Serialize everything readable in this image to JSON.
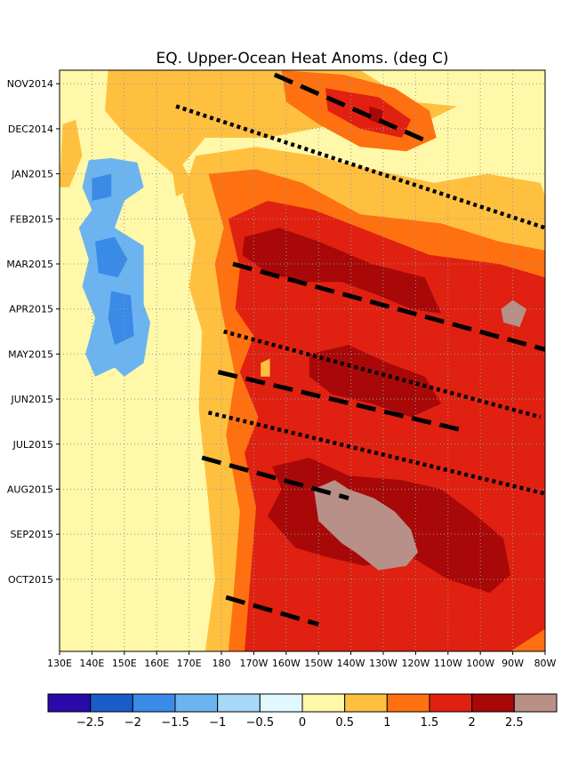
{
  "chart_data": {
    "type": "heatmap",
    "title": "EQ. Upper-Ocean Heat Anoms. (deg C)",
    "xlabel": "",
    "ylabel": "",
    "x_tick_labels": [
      "130E",
      "140E",
      "150E",
      "160E",
      "170E",
      "180",
      "170W",
      "160W",
      "150W",
      "140W",
      "130W",
      "120W",
      "110W",
      "100W",
      "90W",
      "80W"
    ],
    "y_tick_labels": [
      "NOV2014",
      "DEC2014",
      "JAN2015",
      "FEB2015",
      "MAR2015",
      "APR2015",
      "MAY2015",
      "JUN2015",
      "JUL2015",
      "AUG2015",
      "SEP2015",
      "OCT2015"
    ],
    "colorbar": {
      "labels": [
        "-2.5",
        "-2",
        "-1.5",
        "-1",
        "-0.5",
        "0",
        "0.5",
        "1",
        "1.5",
        "2",
        "2.5"
      ],
      "colors": [
        "#2a0aa8",
        "#1a5cc8",
        "#3a8ae8",
        "#6cb4f0",
        "#a8d8f8",
        "#e0f8ff",
        "#fff8a8",
        "#ffc040",
        "#ff7010",
        "#e02010",
        "#a80808",
        "#b89088"
      ]
    },
    "grid": true,
    "regions": [
      {
        "level": -1.5,
        "color": "#6cb4f0",
        "name": "blue-patch-west-1",
        "points": [
          [
            141,
            0.55
          ],
          [
            146,
            0.5
          ],
          [
            152,
            0.58
          ],
          [
            150,
            0.8
          ],
          [
            142,
            0.85
          ]
        ]
      },
      {
        "level": -1.5,
        "color": "#6cb4f0",
        "name": "blue-patch-west-2",
        "points": [
          [
            139,
            1.7
          ],
          [
            146,
            1.65
          ],
          [
            154,
            1.75
          ],
          [
            156,
            2.3
          ],
          [
            150,
            2.6
          ],
          [
            147,
            3.2
          ],
          [
            156,
            3.6
          ],
          [
            156,
            4.9
          ],
          [
            158,
            5.3
          ],
          [
            156,
            6.2
          ],
          [
            150,
            6.5
          ],
          [
            147,
            6.3
          ],
          [
            141,
            6.5
          ],
          [
            138,
            6.0
          ],
          [
            141,
            5.2
          ],
          [
            137,
            4.5
          ],
          [
            139,
            3.9
          ],
          [
            136,
            3.2
          ],
          [
            140,
            2.8
          ],
          [
            137,
            2.3
          ]
        ]
      },
      {
        "level": -1.0,
        "color": "#3a8ae8",
        "name": "blue-core-1",
        "points": [
          [
            140,
            2.1
          ],
          [
            146,
            2.0
          ],
          [
            146,
            2.5
          ],
          [
            140,
            2.6
          ]
        ]
      },
      {
        "level": -1.0,
        "color": "#3a8ae8",
        "name": "blue-core-2",
        "points": [
          [
            141,
            3.5
          ],
          [
            147,
            3.4
          ],
          [
            151,
            3.9
          ],
          [
            148,
            4.3
          ],
          [
            142,
            4.2
          ]
        ]
      },
      {
        "level": -1.0,
        "color": "#3a8ae8",
        "name": "blue-core-3",
        "points": [
          [
            146,
            4.6
          ],
          [
            152,
            4.7
          ],
          [
            153,
            5.6
          ],
          [
            147,
            5.8
          ],
          [
            145,
            5.2
          ]
        ]
      },
      {
        "level": 0.0,
        "color": "#fff8a8",
        "name": "warm-0",
        "points": [
          [
            135,
            -0.3
          ],
          [
            320,
            -0.3
          ],
          [
            320,
            12.6
          ],
          [
            163,
            12.6
          ],
          [
            165,
            10
          ],
          [
            167,
            7.5
          ],
          [
            165,
            6
          ],
          [
            167,
            4
          ],
          [
            165,
            3
          ],
          [
            160,
            2
          ],
          [
            150,
            1.2
          ],
          [
            133,
            1.1
          ],
          [
            131,
            0.4
          ],
          [
            135,
            0.1
          ]
        ]
      },
      {
        "level": 0.5,
        "color": "#ffc040",
        "name": "warm-05-north",
        "points": [
          [
            145,
            -0.3
          ],
          [
            240,
            -0.3
          ],
          [
            262,
            0.4
          ],
          [
            282,
            0.5
          ],
          [
            270,
            0.8
          ],
          [
            250,
            0.9
          ],
          [
            230,
            0.9
          ],
          [
            200,
            1.2
          ],
          [
            175,
            1.2
          ],
          [
            168,
            1.8
          ],
          [
            172,
            2.3
          ],
          [
            166,
            2.5
          ],
          [
            165,
            2.0
          ],
          [
            150,
            1.1
          ],
          [
            144,
            0.6
          ]
        ]
      },
      {
        "level": 0.5,
        "color": "#ffc040",
        "name": "warm-05-main",
        "points": [
          [
            172,
            1.6
          ],
          [
            195,
            1.4
          ],
          [
            220,
            1.6
          ],
          [
            245,
            1.9
          ],
          [
            272,
            2.2
          ],
          [
            295,
            2.0
          ],
          [
            318,
            2.2
          ],
          [
            320,
            2.5
          ],
          [
            320,
            12.6
          ],
          [
            175,
            12.6
          ],
          [
            178,
            11.0
          ],
          [
            176,
            9.3
          ],
          [
            173,
            7.2
          ],
          [
            174,
            5.5
          ],
          [
            170,
            4.5
          ],
          [
            172,
            3.5
          ],
          [
            168,
            2.5
          ]
        ]
      },
      {
        "level": 0.5,
        "color": "#ffc040",
        "name": "warm-05-west-strip",
        "points": [
          [
            131,
            0.9
          ],
          [
            135,
            0.8
          ],
          [
            137,
            1.6
          ],
          [
            133,
            2.3
          ],
          [
            130,
            2.3
          ]
        ]
      },
      {
        "level": 1.0,
        "color": "#ff7010",
        "name": "warm-1-north",
        "points": [
          [
            206,
            -0.3
          ],
          [
            233,
            -0.2
          ],
          [
            255,
            0.1
          ],
          [
            270,
            0.6
          ],
          [
            273,
            1.2
          ],
          [
            260,
            1.5
          ],
          [
            240,
            1.4
          ],
          [
            222,
            0.9
          ],
          [
            208,
            0.4
          ]
        ]
      },
      {
        "level": 1.0,
        "color": "#ff7010",
        "name": "warm-1-main",
        "points": [
          [
            176,
            2.0
          ],
          [
            195,
            1.9
          ],
          [
            215,
            2.2
          ],
          [
            240,
            2.9
          ],
          [
            275,
            3.1
          ],
          [
            300,
            3.5
          ],
          [
            320,
            3.7
          ],
          [
            320,
            12.6
          ],
          [
            183,
            12.6
          ],
          [
            185,
            11.5
          ],
          [
            188,
            9.5
          ],
          [
            182,
            7.8
          ],
          [
            186,
            6.5
          ],
          [
            180,
            5.0
          ],
          [
            178,
            4.0
          ],
          [
            181,
            3.2
          ]
        ]
      },
      {
        "level": 1.5,
        "color": "#e02010",
        "name": "warm-15-north",
        "points": [
          [
            225,
            0.1
          ],
          [
            248,
            0.3
          ],
          [
            262,
            0.8
          ],
          [
            258,
            1.2
          ],
          [
            240,
            1.0
          ],
          [
            226,
            0.6
          ]
        ]
      },
      {
        "level": 1.5,
        "color": "#e02010",
        "name": "warm-15-main",
        "points": [
          [
            183,
            3.0
          ],
          [
            200,
            2.6
          ],
          [
            220,
            2.8
          ],
          [
            240,
            3.2
          ],
          [
            270,
            3.8
          ],
          [
            300,
            4.0
          ],
          [
            320,
            4.3
          ],
          [
            320,
            12.1
          ],
          [
            305,
            12.6
          ],
          [
            190,
            12.6
          ],
          [
            192,
            11.3
          ],
          [
            195,
            9.4
          ],
          [
            190,
            8.2
          ],
          [
            196,
            7.4
          ],
          [
            188,
            6.4
          ],
          [
            194,
            5.6
          ],
          [
            186,
            5.0
          ],
          [
            188,
            4.1
          ]
        ]
      },
      {
        "level": 2.0,
        "color": "#a80808",
        "name": "warm-2-north",
        "points": [
          [
            244,
            0.5
          ],
          [
            250,
            0.6
          ],
          [
            249,
            0.9
          ],
          [
            244,
            0.8
          ]
        ]
      },
      {
        "level": 2.0,
        "color": "#a80808",
        "name": "warm-2-apr",
        "points": [
          [
            190,
            3.4
          ],
          [
            205,
            3.2
          ],
          [
            222,
            3.5
          ],
          [
            245,
            4.0
          ],
          [
            268,
            4.3
          ],
          [
            275,
            5.1
          ],
          [
            262,
            5.0
          ],
          [
            248,
            4.7
          ],
          [
            232,
            4.4
          ],
          [
            215,
            4.4
          ],
          [
            200,
            4.2
          ],
          [
            189,
            3.8
          ]
        ]
      },
      {
        "level": 2.0,
        "color": "#a80808",
        "name": "warm-2-jun",
        "points": [
          [
            218,
            6.0
          ],
          [
            235,
            5.8
          ],
          [
            252,
            6.2
          ],
          [
            268,
            6.5
          ],
          [
            275,
            7.1
          ],
          [
            262,
            7.4
          ],
          [
            245,
            7.1
          ],
          [
            228,
            6.9
          ],
          [
            218,
            6.5
          ]
        ]
      },
      {
        "level": 2.0,
        "color": "#a80808",
        "name": "warm-2-aug",
        "points": [
          [
            202,
            8.5
          ],
          [
            218,
            8.3
          ],
          [
            235,
            8.7
          ],
          [
            258,
            8.8
          ],
          [
            275,
            9.0
          ],
          [
            288,
            9.5
          ],
          [
            302,
            10.1
          ],
          [
            305,
            10.9
          ],
          [
            296,
            11.3
          ],
          [
            278,
            11.0
          ],
          [
            262,
            10.5
          ],
          [
            242,
            10.7
          ],
          [
            225,
            10.5
          ],
          [
            212,
            10.3
          ],
          [
            200,
            9.6
          ],
          [
            206,
            9.0
          ]
        ]
      },
      {
        "level": 2.5,
        "color": "#b89088",
        "name": "warm-25-may",
        "points": [
          [
            301,
            5.0
          ],
          [
            306,
            4.8
          ],
          [
            312,
            5.0
          ],
          [
            309,
            5.4
          ],
          [
            302,
            5.3
          ]
        ]
      },
      {
        "level": 2.5,
        "color": "#b89088",
        "name": "warm-25-aug",
        "points": [
          [
            220,
            9.0
          ],
          [
            229,
            8.8
          ],
          [
            235,
            9.0
          ],
          [
            246,
            9.2
          ],
          [
            255,
            9.5
          ],
          [
            262,
            9.9
          ],
          [
            265,
            10.4
          ],
          [
            260,
            10.7
          ],
          [
            248,
            10.8
          ],
          [
            238,
            10.4
          ],
          [
            232,
            10.2
          ],
          [
            222,
            9.7
          ]
        ]
      },
      {
        "level": 2.0,
        "color": "#ffc040",
        "name": "spot-may",
        "points": [
          [
            197,
            6.2
          ],
          [
            201,
            6.1
          ],
          [
            201,
            6.5
          ],
          [
            197,
            6.5
          ]
        ]
      }
    ],
    "kelvin_waves": [
      {
        "style": "dashed",
        "points": [
          [
            203,
            -0.2
          ],
          [
            270,
            1.3
          ]
        ]
      },
      {
        "style": "dotted",
        "points": [
          [
            166,
            0.5
          ],
          [
            320,
            3.2
          ]
        ]
      },
      {
        "style": "dashed",
        "points": [
          [
            185,
            4.0
          ],
          [
            320,
            5.9
          ]
        ]
      },
      {
        "style": "dotted",
        "points": [
          [
            181,
            5.5
          ],
          [
            318,
            7.4
          ]
        ]
      },
      {
        "style": "dashed",
        "points": [
          [
            179,
            6.4
          ],
          [
            285,
            7.7
          ]
        ]
      },
      {
        "style": "dotted",
        "points": [
          [
            176,
            7.3
          ],
          [
            320,
            9.1
          ]
        ]
      },
      {
        "style": "dashed",
        "points": [
          [
            174,
            8.3
          ],
          [
            235,
            9.2
          ]
        ]
      },
      {
        "style": "dashed",
        "points": [
          [
            182,
            11.4
          ],
          [
            222,
            12.0
          ]
        ]
      }
    ],
    "x_range_deg_east": [
      130,
      280
    ],
    "y_range_months_from_nov2014": [
      -0.3,
      12.6
    ]
  }
}
